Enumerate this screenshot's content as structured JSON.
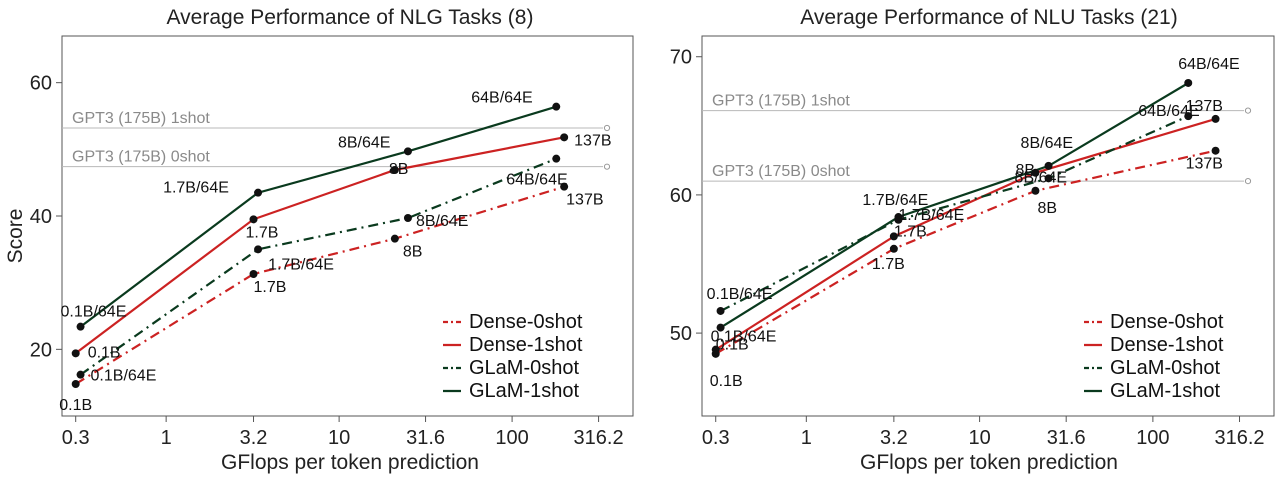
{
  "colors": {
    "dense": "#cc2222",
    "glam": "#0a3a1e",
    "ref": "#8a8a8a",
    "frame": "#555555"
  },
  "chart_data": [
    {
      "type": "line",
      "title": "Average Performance of NLG Tasks (8)",
      "xlabel": "GFlops per token prediction",
      "ylabel": "Score",
      "x_scale": "log",
      "xlim": [
        0.25,
        500
      ],
      "ylim": [
        10,
        67
      ],
      "x_ticks": [
        0.3,
        1,
        3.2,
        10,
        31.6,
        100,
        316.2
      ],
      "x_tick_labels": [
        "0.3",
        "1",
        "3.2",
        "10",
        "31.6",
        "100",
        "316.2"
      ],
      "y_ticks": [
        20,
        40,
        60
      ],
      "y_tick_labels": [
        "20",
        "40",
        "60"
      ],
      "grid": false,
      "legend_position": "bottom-right",
      "legend": [
        {
          "name": "Dense-0shot",
          "color": "#cc2222",
          "dash": "dotdash"
        },
        {
          "name": "Dense-1shot",
          "color": "#cc2222",
          "dash": "solid"
        },
        {
          "name": "GLaM-0shot",
          "color": "#0a3a1e",
          "dash": "dotdash"
        },
        {
          "name": "GLaM-1shot",
          "color": "#0a3a1e",
          "dash": "solid"
        }
      ],
      "reference_lines": [
        {
          "label": "GPT3 (175B) 1shot",
          "y": 53.2
        },
        {
          "label": "GPT3 (175B) 0shot",
          "y": 47.4
        }
      ],
      "series": [
        {
          "name": "Dense-0shot",
          "color": "#cc2222",
          "dash": "dotdash",
          "x": [
            0.3,
            3.2,
            21,
            200
          ],
          "y": [
            14.8,
            31.3,
            36.6,
            44.4
          ],
          "labels": [
            "0.1B",
            "1.7B",
            "8B",
            "137B"
          ]
        },
        {
          "name": "Dense-1shot",
          "color": "#cc2222",
          "dash": "solid",
          "x": [
            0.3,
            3.2,
            21,
            200
          ],
          "y": [
            19.4,
            39.5,
            46.9,
            51.8
          ],
          "labels": [
            "0.1B",
            "1.7B",
            "8B",
            "137B"
          ]
        },
        {
          "name": "GLaM-0shot",
          "color": "#0a3a1e",
          "dash": "dotdash",
          "x": [
            0.32,
            3.4,
            25,
            180
          ],
          "y": [
            16.2,
            35.0,
            39.7,
            48.6
          ],
          "labels": [
            "0.1B/64E",
            "1.7B/64E",
            "8B/64E",
            "64B/64E"
          ]
        },
        {
          "name": "GLaM-1shot",
          "color": "#0a3a1e",
          "dash": "solid",
          "x": [
            0.32,
            3.4,
            25,
            180
          ],
          "y": [
            23.4,
            43.5,
            49.7,
            56.4
          ],
          "labels": [
            "0.1B/64E",
            "1.7B/64E",
            "8B/64E",
            "64B/64E"
          ]
        }
      ]
    },
    {
      "type": "line",
      "title": "Average Performance of NLU Tasks (21)",
      "xlabel": "GFlops per token prediction",
      "ylabel": "",
      "x_scale": "log",
      "xlim": [
        0.25,
        500
      ],
      "ylim": [
        44,
        71.5
      ],
      "x_ticks": [
        0.3,
        1,
        3.2,
        10,
        31.6,
        100,
        316.2
      ],
      "x_tick_labels": [
        "0.3",
        "1",
        "3.2",
        "10",
        "31.6",
        "100",
        "316.2"
      ],
      "y_ticks": [
        50,
        60,
        70
      ],
      "y_tick_labels": [
        "50",
        "60",
        "70"
      ],
      "grid": false,
      "legend_position": "bottom-right",
      "legend": [
        {
          "name": "Dense-0shot",
          "color": "#cc2222",
          "dash": "dotdash"
        },
        {
          "name": "Dense-1shot",
          "color": "#cc2222",
          "dash": "solid"
        },
        {
          "name": "GLaM-0shot",
          "color": "#0a3a1e",
          "dash": "dotdash"
        },
        {
          "name": "GLaM-1shot",
          "color": "#0a3a1e",
          "dash": "solid"
        }
      ],
      "reference_lines": [
        {
          "label": "GPT3 (175B) 1shot",
          "y": 66.1
        },
        {
          "label": "GPT3 (175B) 0shot",
          "y": 61.0
        }
      ],
      "series": [
        {
          "name": "Dense-0shot",
          "color": "#cc2222",
          "dash": "dotdash",
          "x": [
            0.3,
            3.2,
            21,
            230
          ],
          "y": [
            48.5,
            56.1,
            60.3,
            63.2
          ],
          "labels": [
            "0.1B",
            "1.7B",
            "8B",
            "137B"
          ]
        },
        {
          "name": "Dense-1shot",
          "color": "#cc2222",
          "dash": "solid",
          "x": [
            0.3,
            3.2,
            21,
            230
          ],
          "y": [
            48.8,
            57.0,
            61.6,
            65.5
          ],
          "labels": [
            "0.1B",
            "1.7B",
            "8B",
            "137B"
          ]
        },
        {
          "name": "GLaM-0shot",
          "color": "#0a3a1e",
          "dash": "dotdash",
          "x": [
            0.32,
            3.4,
            25,
            160
          ],
          "y": [
            51.6,
            58.2,
            61.2,
            65.7
          ],
          "labels": [
            "0.1B/64E",
            "1.7B/64E",
            "8B/64E",
            "64B/64E"
          ]
        },
        {
          "name": "GLaM-1shot",
          "color": "#0a3a1e",
          "dash": "solid",
          "x": [
            0.32,
            3.4,
            25,
            160
          ],
          "y": [
            50.4,
            58.4,
            62.1,
            68.1
          ],
          "labels": [
            "0.1B/64E",
            "1.7B/64E",
            "8B/64E",
            "64B/64E"
          ]
        }
      ]
    }
  ]
}
